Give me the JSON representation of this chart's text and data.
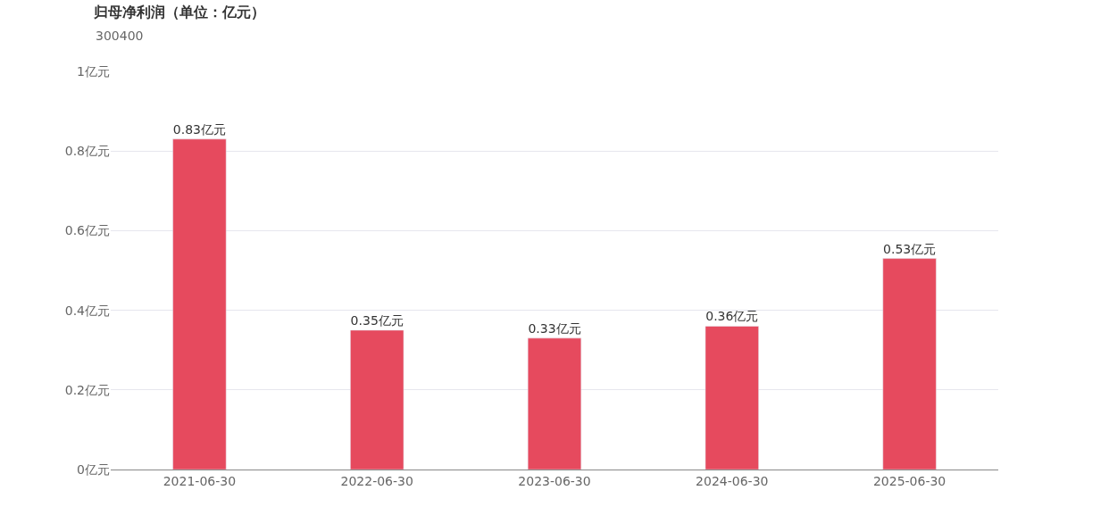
{
  "chart_data": {
    "type": "bar",
    "title": "归母净利润（单位：亿元）",
    "subtitle": "300400",
    "categories": [
      "2021-06-30",
      "2022-06-30",
      "2023-06-30",
      "2024-06-30",
      "2025-06-30"
    ],
    "values": [
      0.83,
      0.35,
      0.33,
      0.36,
      0.53
    ],
    "value_labels": [
      "0.83亿元",
      "0.35亿元",
      "0.33亿元",
      "0.36亿元",
      "0.53亿元"
    ],
    "color": "#e64a5e",
    "ylim": [
      0,
      1
    ],
    "yticks": [
      {
        "value": 0,
        "label": "0亿元"
      },
      {
        "value": 0.2,
        "label": "0.2亿元"
      },
      {
        "value": 0.4,
        "label": "0.4亿元"
      },
      {
        "value": 0.6,
        "label": "0.6亿元"
      },
      {
        "value": 0.8,
        "label": "0.8亿元"
      },
      {
        "value": 1,
        "label": "1亿元"
      }
    ],
    "grid": "y",
    "legend": false
  }
}
